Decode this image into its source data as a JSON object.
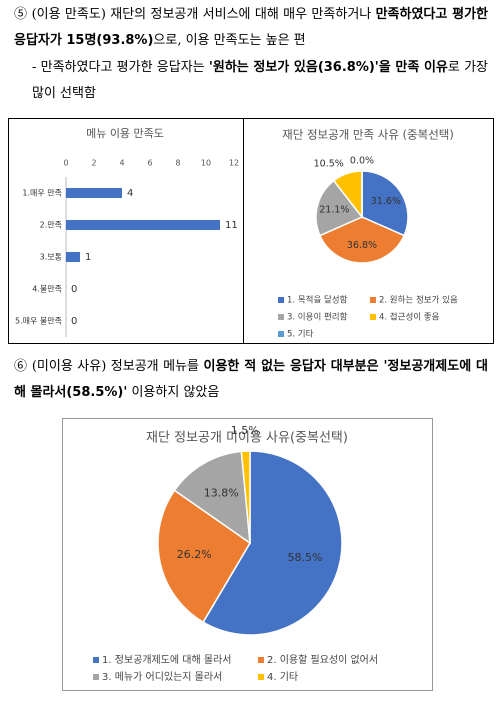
{
  "paragraphs": [
    {
      "segments": [
        {
          "text": "⑤ (이용 만족도) 재단의 정보공개 서비스에 대해 매우 만족하거나 ",
          "bold": false
        },
        {
          "text": "만족하였다고 평가한 응답자가 15명(93.8%)",
          "bold": true
        },
        {
          "text": "으로, 이용 만족도는 높은 편",
          "bold": false
        }
      ]
    },
    {
      "segments": [
        {
          "text": "- 만족하였다고 평가한 응답자는 ",
          "bold": false
        },
        {
          "text": "'원하는 정보가 있음(36.8%)'을 만족 이유",
          "bold": true
        },
        {
          "text": "로 가장 많이 선택함",
          "bold": false
        }
      ]
    },
    {
      "segments": [
        {
          "text": "⑥ (미이용 사유) 정보공개 메뉴를 ",
          "bold": false
        },
        {
          "text": "이용한 적 없는 응답자 대부분은 '정보공개제도에 대해 몰라서(58.5%)'",
          "bold": true
        },
        {
          "text": " 이용하지 않았음",
          "bold": false
        }
      ]
    }
  ],
  "chart_data": [
    {
      "type": "hbar",
      "title": "메뉴 이용 만족도",
      "categories": [
        "1.매우 만족",
        "2.만족",
        "3.보통",
        "4.불만족",
        "5.매우 불만족"
      ],
      "values": [
        4,
        11,
        1,
        0,
        0
      ],
      "color": "#4472c4",
      "xlim": [
        0,
        12
      ],
      "xticks": [
        0,
        2,
        4,
        6,
        8,
        10,
        12
      ]
    },
    {
      "type": "pie",
      "title": "재단 정보공개 만족 사유 (중복선택)",
      "categories": [
        "1. 목적을 달성함",
        "2. 원하는 정보가 있음",
        "3. 이용이 편리함",
        "4. 접근성이 좋음",
        "5. 기타"
      ],
      "values": [
        31.6,
        36.8,
        21.1,
        10.5,
        0.0
      ],
      "value_labels": [
        "31.6%",
        "36.8%",
        "21.1%",
        "10.5%",
        "0.0%"
      ],
      "colors": [
        "#4472c4",
        "#ed7d31",
        "#a5a5a5",
        "#ffc000",
        "#5b9bd5"
      ]
    },
    {
      "type": "pie",
      "title": "재단 정보공개 미이용 사유(중복선택)",
      "categories": [
        "1. 정보공개제도에 대해 몰라서",
        "2. 이용할 필요성이 없어서",
        "3. 메뉴가 어디있는지 몰라서",
        "4. 기타"
      ],
      "values": [
        58.5,
        26.2,
        13.8,
        1.5
      ],
      "value_labels": [
        "58.5%",
        "26.2%",
        "13.8%",
        "1.5%"
      ],
      "colors": [
        "#4472c4",
        "#ed7d31",
        "#a5a5a5",
        "#ffc000"
      ]
    }
  ]
}
